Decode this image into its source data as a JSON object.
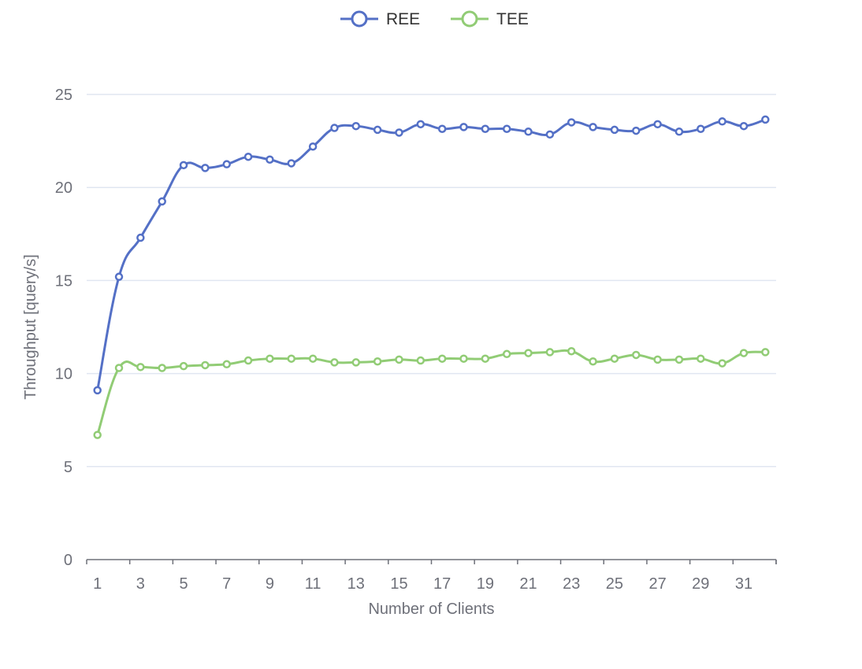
{
  "chart_data": {
    "type": "line",
    "x": [
      1,
      2,
      3,
      4,
      5,
      6,
      7,
      8,
      9,
      10,
      11,
      12,
      13,
      14,
      15,
      16,
      17,
      18,
      19,
      20,
      21,
      22,
      23,
      24,
      25,
      26,
      27,
      28,
      29,
      30,
      31,
      32
    ],
    "x_tick_labels": [
      "1",
      "3",
      "5",
      "7",
      "9",
      "11",
      "13",
      "15",
      "17",
      "19",
      "21",
      "23",
      "25",
      "27",
      "29",
      "31"
    ],
    "y_tick_labels": [
      "0",
      "5",
      "10",
      "15",
      "20",
      "25"
    ],
    "series": [
      {
        "name": "REE",
        "color": "#5470c6",
        "values": [
          9.1,
          15.2,
          17.3,
          19.25,
          21.2,
          21.05,
          21.25,
          21.65,
          21.5,
          21.3,
          22.2,
          23.2,
          23.3,
          23.1,
          22.95,
          23.4,
          23.15,
          23.25,
          23.15,
          23.15,
          23.0,
          22.85,
          23.5,
          23.25,
          23.1,
          23.05,
          23.4,
          23.0,
          23.15,
          23.55,
          23.3,
          23.65
        ]
      },
      {
        "name": "TEE",
        "color": "#91cc75",
        "values": [
          6.7,
          10.3,
          10.35,
          10.3,
          10.4,
          10.45,
          10.5,
          10.7,
          10.8,
          10.8,
          10.8,
          10.6,
          10.6,
          10.65,
          10.75,
          10.7,
          10.8,
          10.8,
          10.8,
          11.05,
          11.1,
          11.15,
          11.2,
          10.65,
          10.8,
          11.0,
          10.75,
          10.75,
          10.8,
          10.55,
          11.1,
          11.15
        ]
      }
    ],
    "xlabel": "Number of Clients",
    "ylabel": "Throughput [query/s]",
    "ylim": [
      0,
      25
    ],
    "grid": true,
    "legend_position": "top-center"
  }
}
